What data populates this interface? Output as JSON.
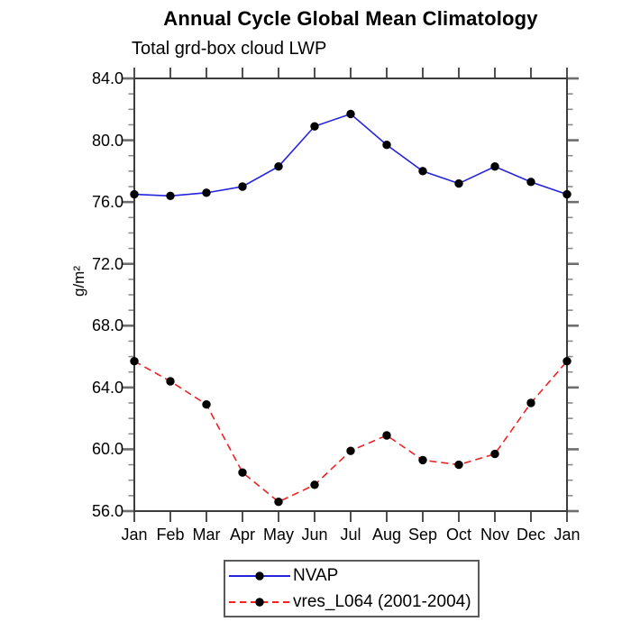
{
  "figure": {
    "background": "#ffffff",
    "text_color": "#000000",
    "frame_color": "#3c3c3c",
    "tick_color_major": "#6e6e6e",
    "tick_color_minor": "#8c8c8c"
  },
  "chart_data": {
    "type": "line",
    "title": "Annual Cycle Global Mean Climatology",
    "subtitle": "Total grd-box cloud LWP",
    "ylabel": "g/m²",
    "xlabel": "",
    "categories": [
      "Jan",
      "Feb",
      "Mar",
      "Apr",
      "May",
      "Jun",
      "Jul",
      "Aug",
      "Sep",
      "Oct",
      "Nov",
      "Dec",
      "Jan"
    ],
    "series": [
      {
        "name": "NVAP",
        "color": "#2424dd",
        "line_style": "solid",
        "marker": "filled-circle",
        "marker_color": "#000000",
        "values": [
          76.5,
          76.4,
          76.6,
          77.0,
          78.3,
          80.9,
          81.7,
          79.7,
          78.0,
          77.2,
          78.3,
          77.3,
          76.5
        ]
      },
      {
        "name": "vres_L064 (2001-2004)",
        "color": "#ee2222",
        "line_style": "dashed",
        "marker": "filled-circle",
        "marker_color": "#000000",
        "values": [
          65.7,
          64.4,
          62.9,
          58.5,
          56.6,
          57.7,
          59.9,
          60.9,
          59.3,
          59.0,
          59.7,
          63.0,
          65.7
        ]
      }
    ],
    "ylim": [
      56,
      84
    ],
    "ytick_step_major": 4,
    "ytick_step_minor": 1,
    "ytick_labels": [
      "56.0",
      "60.0",
      "64.0",
      "68.0",
      "72.0",
      "76.0",
      "80.0",
      "84.0"
    ],
    "grid": false,
    "legend_position": "bottom-center",
    "ticks": "all-four-sides-outward"
  }
}
